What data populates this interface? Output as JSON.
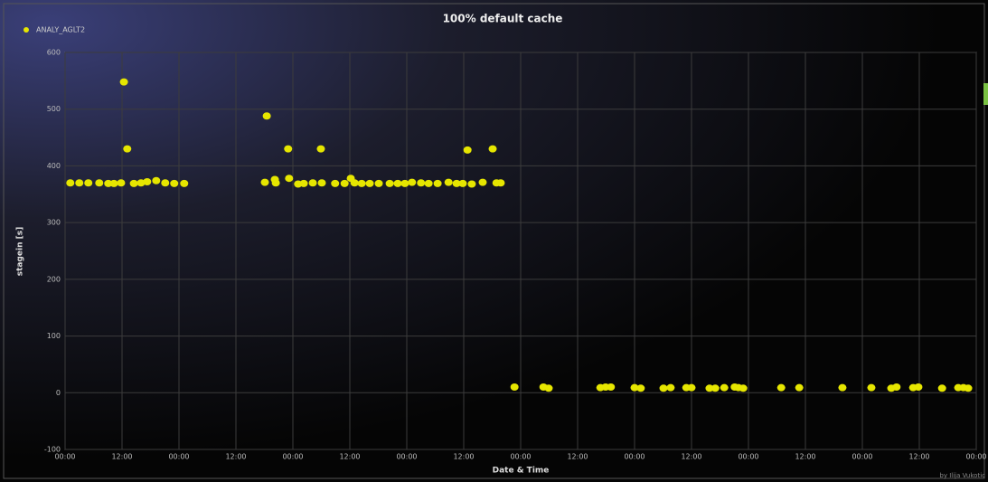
{
  "chart_data": {
    "type": "scatter",
    "title": "100% default cache",
    "xlabel": "Date & Time",
    "ylabel": "stagein [s]",
    "credit": "by Ilija Vukotic",
    "grid": true,
    "legend": "top-left",
    "series": [
      {
        "name": "ANALY_AGLT2",
        "color": "#e6e600",
        "x": [
          1.1,
          3.0,
          4.9,
          7.2,
          9.1,
          10.3,
          11.8,
          12.4,
          13.1,
          14.5,
          16.0,
          17.3,
          19.2,
          21.1,
          23.0,
          25.1,
          42.1,
          42.5,
          44.2,
          44.4,
          47.0,
          47.2,
          49.1,
          50.3,
          52.2,
          53.9,
          54.1,
          56.9,
          58.9,
          60.2,
          61.0,
          62.5,
          64.2,
          66.1,
          68.4,
          70.1,
          71.6,
          73.1,
          75.0,
          76.6,
          78.5,
          80.8,
          82.5,
          83.8,
          84.8,
          85.7,
          88.0,
          90.1,
          90.9,
          91.8,
          94.7,
          100.8,
          101.9,
          112.8,
          113.9,
          115.0,
          120.0,
          121.3,
          126.1,
          127.6,
          130.9,
          132.0,
          135.8,
          137.0,
          138.9,
          141.1,
          141.9,
          142.9,
          150.9,
          154.7,
          163.8,
          169.9,
          174.1,
          175.2,
          178.7,
          179.8,
          184.8,
          188.2,
          189.3,
          190.3
        ],
        "values": [
          370,
          370,
          370,
          370,
          369,
          369,
          370,
          548,
          430,
          369,
          370,
          372,
          374,
          370,
          369,
          369,
          371,
          488,
          376,
          370,
          430,
          378,
          368,
          369,
          370,
          430,
          370,
          369,
          369,
          378,
          370,
          369,
          369,
          369,
          369,
          369,
          369,
          371,
          370,
          369,
          369,
          371,
          369,
          369,
          428,
          368,
          371,
          430,
          370,
          370,
          10,
          10,
          8,
          9,
          10,
          10,
          9,
          8,
          8,
          9,
          9,
          9,
          8,
          8,
          9,
          10,
          9,
          8,
          9,
          9,
          9,
          9,
          8,
          10,
          9,
          10,
          8,
          9,
          9,
          8
        ]
      }
    ],
    "xlim": [
      0,
      192
    ],
    "xticks": [
      {
        "value": 0,
        "label": "00:00"
      },
      {
        "value": 12,
        "label": "12:00"
      },
      {
        "value": 24,
        "label": "00:00"
      },
      {
        "value": 36,
        "label": "12:00"
      },
      {
        "value": 48,
        "label": "00:00"
      },
      {
        "value": 60,
        "label": "12:00"
      },
      {
        "value": 72,
        "label": "00:00"
      },
      {
        "value": 84,
        "label": "12:00"
      },
      {
        "value": 96,
        "label": "00:00"
      },
      {
        "value": 108,
        "label": "12:00"
      },
      {
        "value": 120,
        "label": "00:00"
      },
      {
        "value": 132,
        "label": "12:00"
      },
      {
        "value": 144,
        "label": "00:00"
      },
      {
        "value": 156,
        "label": "12:00"
      },
      {
        "value": 168,
        "label": "00:00"
      },
      {
        "value": 180,
        "label": "12:00"
      },
      {
        "value": 192,
        "label": "00:00"
      }
    ],
    "ylim": [
      -100,
      600
    ],
    "yticks": [
      -100,
      0,
      100,
      200,
      300,
      400,
      500,
      600
    ]
  }
}
